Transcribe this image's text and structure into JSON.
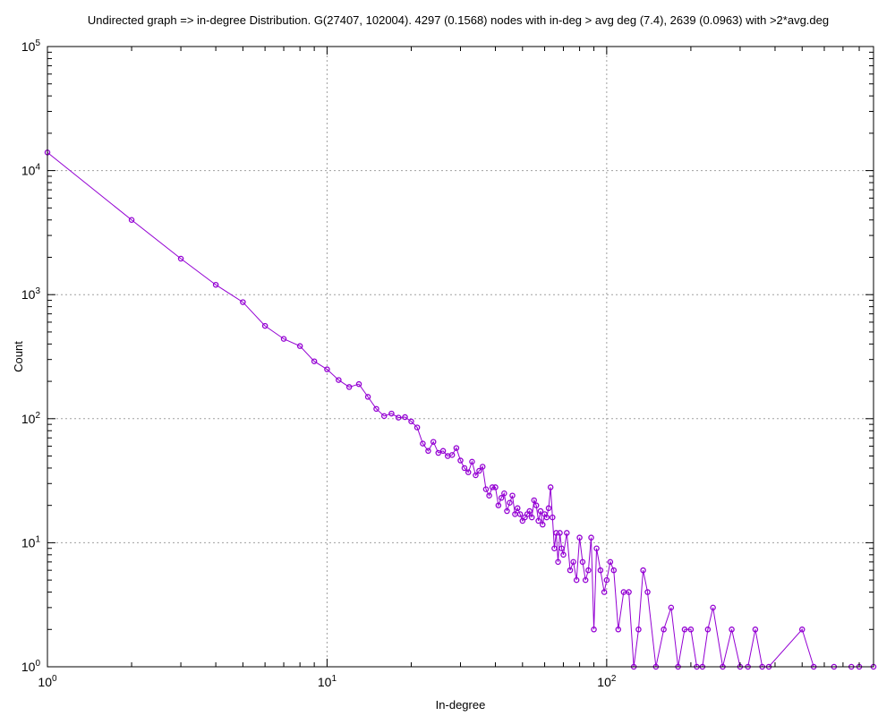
{
  "chart_data": {
    "type": "line",
    "title": "Undirected graph => in-degree Distribution. G(27407, 102004). 4297 (0.1568) nodes with in-deg > avg deg (7.4), 2639 (0.0963) with >2*avg.deg",
    "xlabel": "In-degree",
    "ylabel": "Count",
    "xscale": "log",
    "yscale": "log",
    "xlim": [
      1,
      900
    ],
    "ylim": [
      1,
      100000
    ],
    "grid": true,
    "colors": {
      "series": "#9400d3"
    },
    "x_ticks": [
      {
        "base": "10",
        "exp": "0",
        "value": 1
      },
      {
        "base": "10",
        "exp": "1",
        "value": 10
      },
      {
        "base": "10",
        "exp": "2",
        "value": 100
      }
    ],
    "y_ticks": [
      {
        "base": "10",
        "exp": "0",
        "value": 1
      },
      {
        "base": "10",
        "exp": "1",
        "value": 10
      },
      {
        "base": "10",
        "exp": "2",
        "value": 100
      },
      {
        "base": "10",
        "exp": "3",
        "value": 1000
      },
      {
        "base": "10",
        "exp": "4",
        "value": 10000
      },
      {
        "base": "10",
        "exp": "5",
        "value": 100000
      }
    ],
    "series": [
      {
        "x": [
          1,
          2,
          3,
          4,
          5,
          6,
          7,
          8,
          9,
          10,
          11,
          12,
          13,
          14,
          15,
          16,
          17,
          18,
          19,
          20,
          21,
          22,
          23,
          24,
          25,
          26,
          27,
          28,
          29,
          30,
          31,
          32,
          33,
          34,
          35,
          36,
          37,
          38,
          39,
          40,
          41,
          42,
          43,
          44,
          45,
          46,
          47,
          48,
          49,
          50,
          51,
          52,
          53,
          54,
          55,
          56,
          57,
          58,
          59,
          60,
          61,
          62,
          63,
          64,
          65,
          66,
          67,
          68,
          69,
          70,
          72,
          74,
          76,
          78,
          80,
          82,
          84,
          86,
          88,
          90,
          92,
          95,
          98,
          100,
          103,
          106,
          110,
          115,
          120,
          125,
          130,
          135,
          140,
          150,
          160,
          170,
          180,
          190,
          200,
          210,
          220,
          230,
          240,
          260,
          280,
          300,
          320,
          340,
          360,
          380,
          500,
          550,
          650,
          750,
          800,
          900
        ],
        "y": [
          14000,
          4000,
          1950,
          1200,
          870,
          560,
          440,
          385,
          290,
          250,
          205,
          180,
          190,
          150,
          120,
          105,
          110,
          102,
          103,
          95,
          85,
          63,
          55,
          65,
          53,
          55,
          50,
          51,
          58,
          46,
          40,
          37,
          45,
          35,
          38,
          41,
          27,
          24,
          28,
          28,
          20,
          23,
          25,
          18,
          21,
          24,
          17,
          19,
          17,
          15,
          16,
          17,
          18,
          16,
          22,
          20,
          15,
          18,
          14,
          17,
          16,
          19,
          28,
          16,
          9,
          12,
          7,
          12,
          9,
          8,
          12,
          6,
          7,
          5,
          11,
          7,
          5,
          6,
          11,
          2,
          9,
          6,
          4,
          5,
          7,
          6,
          2,
          4,
          4,
          1,
          2,
          6,
          4,
          1,
          2,
          3,
          1,
          2,
          2,
          1,
          1,
          2,
          3,
          1,
          2,
          1,
          1,
          2,
          1,
          1,
          2,
          1,
          1,
          1,
          1,
          1
        ]
      }
    ]
  }
}
